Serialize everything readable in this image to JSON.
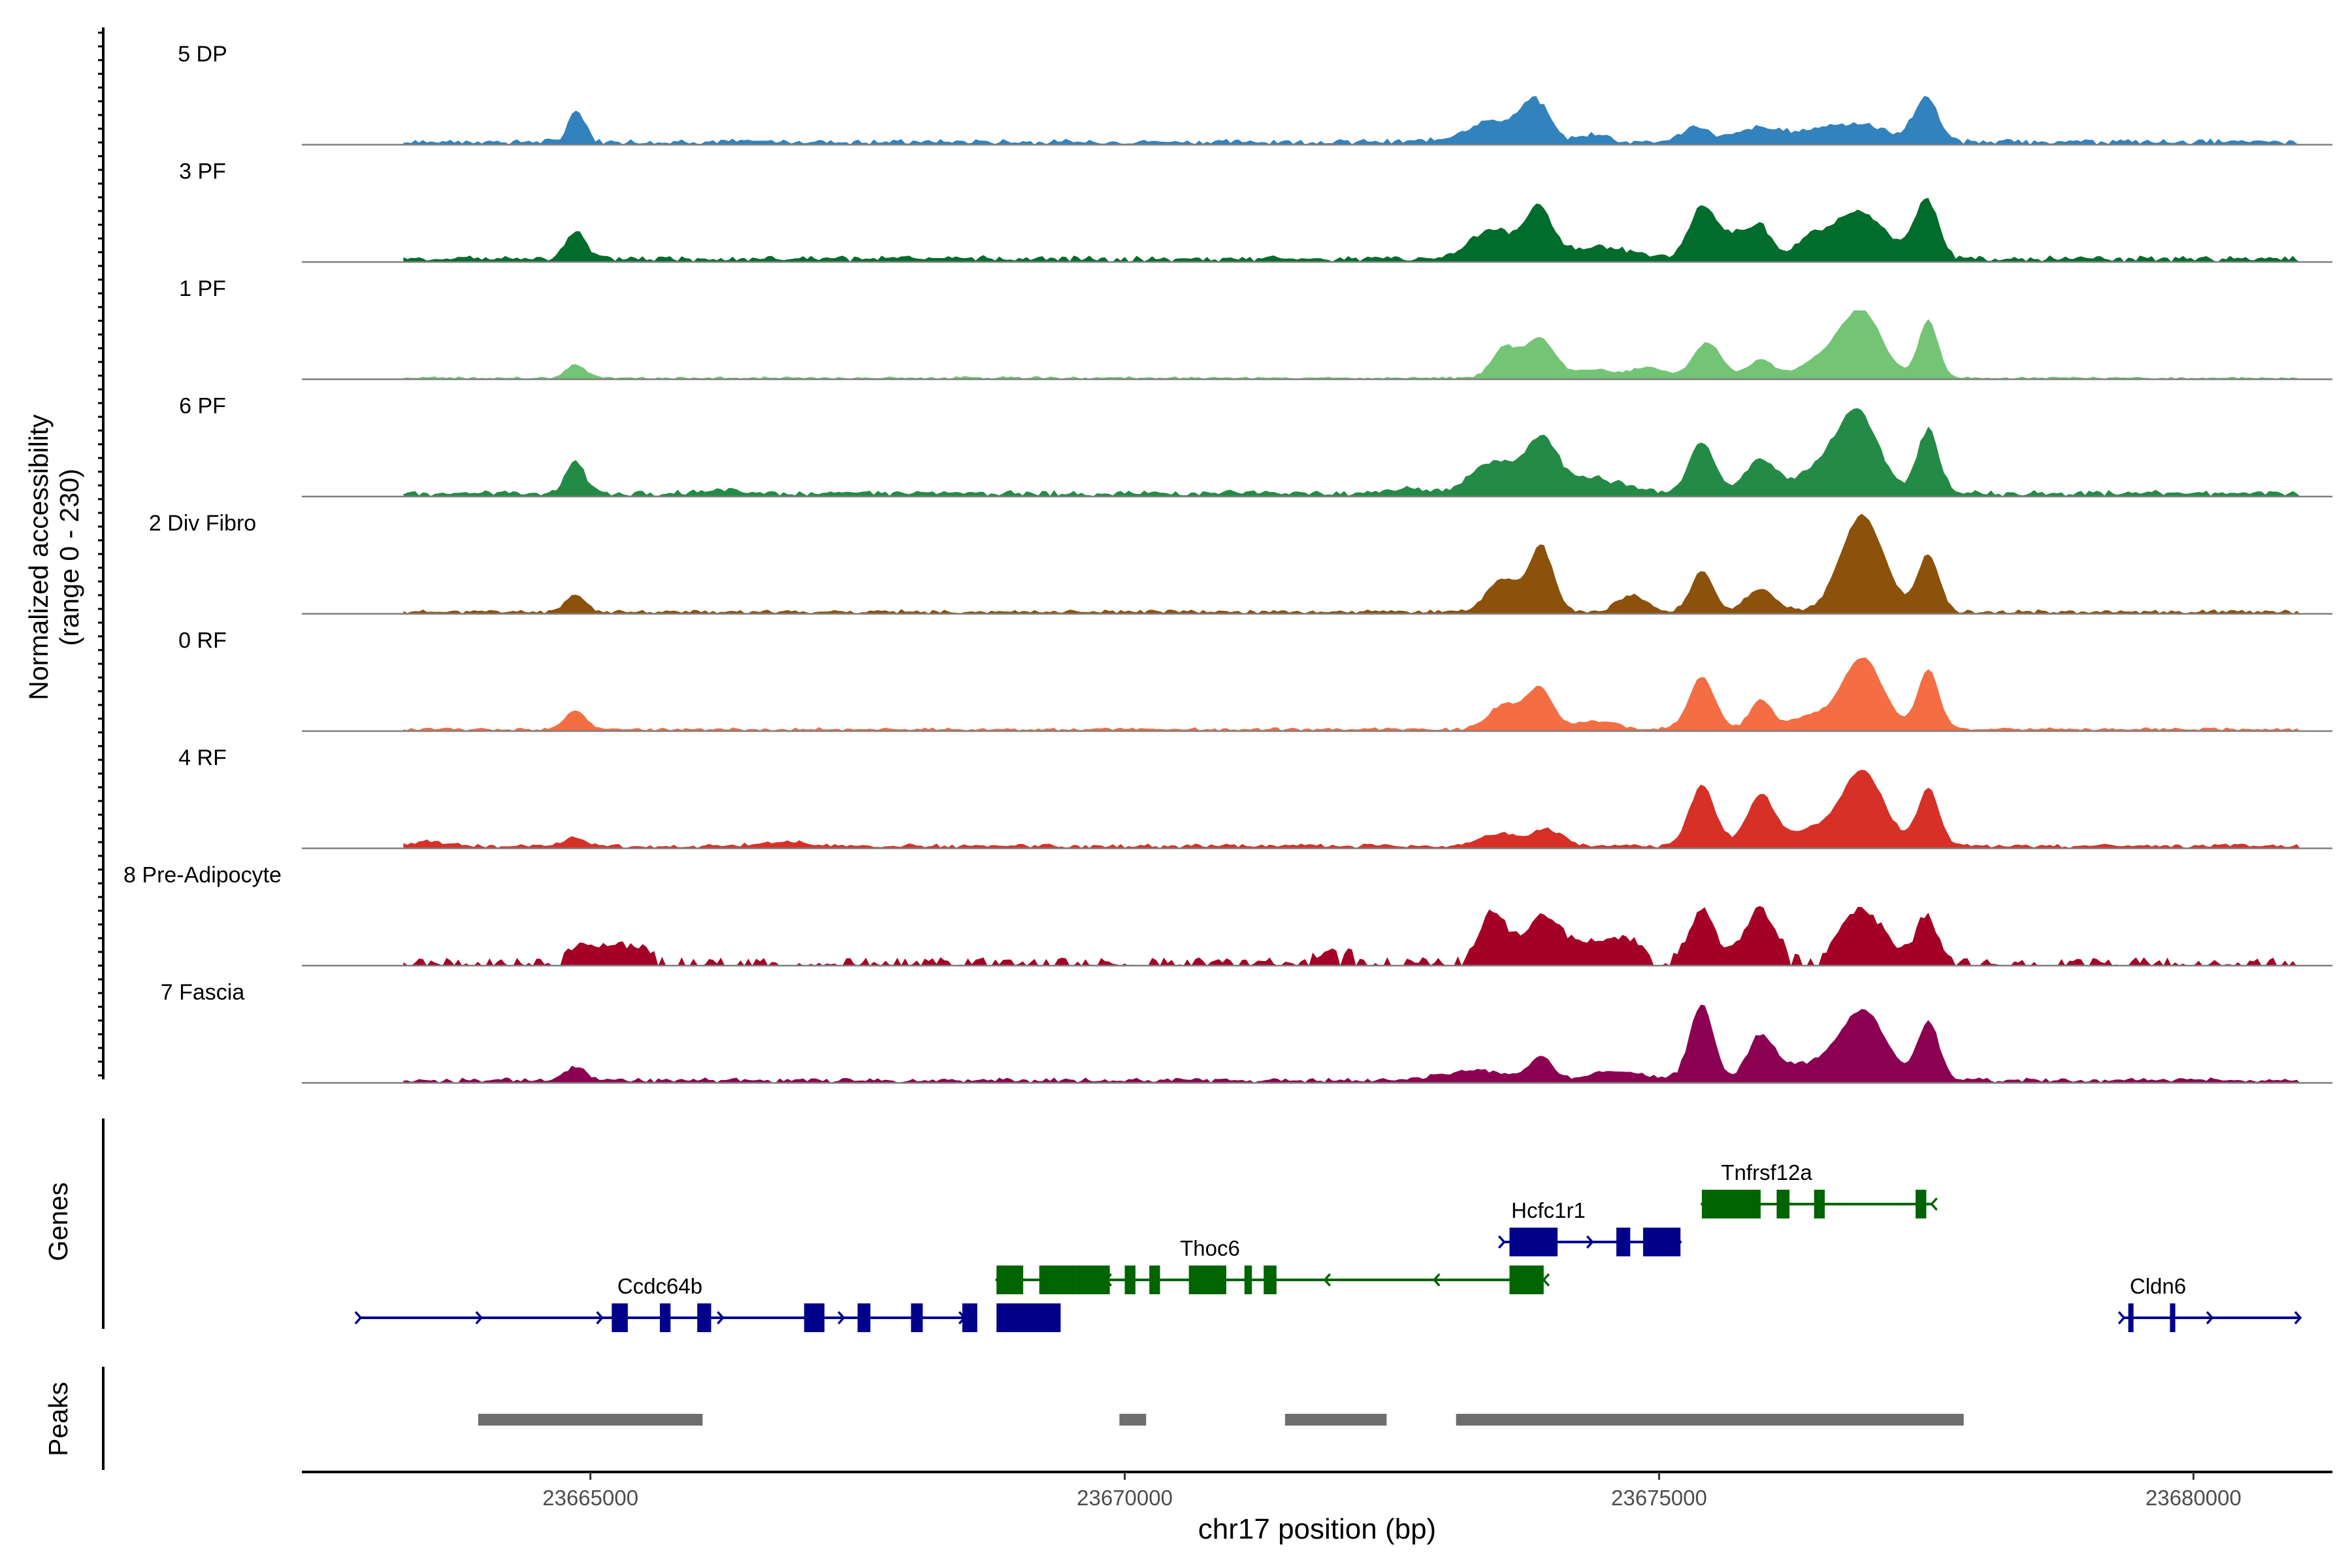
{
  "chart_data": {
    "type": "area",
    "title": "",
    "xlabel": "chr17 position (bp)",
    "ylabel_line1": "Normalized accessibility",
    "ylabel_line2": "(range 0 - 230)",
    "ylim": [
      0,
      230
    ],
    "xlim": [
      23662300,
      23681300
    ],
    "x_ticks": [
      23665000,
      23670000,
      23675000,
      23680000
    ],
    "x_tick_labels": [
      "23665000",
      "23670000",
      "23675000",
      "23680000"
    ],
    "tracks": [
      {
        "name": "5 DP",
        "color": "#3182bd",
        "baseline": 6,
        "noise": 0.025,
        "drop": 0,
        "range": [
          23663250,
          23681000
        ],
        "peaks": [
          [
            23664860,
            0.3,
            70,
            0.95
          ],
          [
            23664960,
            0.06,
            40,
            0.2
          ],
          [
            23673450,
            0.2,
            260,
            0.7
          ],
          [
            23673850,
            0.35,
            130,
            1.0
          ],
          [
            23674400,
            0.08,
            120,
            0.4
          ],
          [
            23675350,
            0.14,
            130,
            0.7
          ],
          [
            23675900,
            0.1,
            180,
            0.5
          ],
          [
            23676800,
            0.17,
            320,
            0.7
          ],
          [
            23677500,
            0.42,
            110,
            1.0
          ],
          [
            23676200,
            0.05,
            300,
            0.2
          ]
        ]
      },
      {
        "name": "3 PF",
        "color": "#006d2c",
        "baseline": 6,
        "noise": 0.03,
        "drop": 0,
        "range": [
          23663250,
          23681000
        ],
        "peaks": [
          [
            23664860,
            0.26,
            90,
            0.95
          ],
          [
            23673450,
            0.28,
            220,
            0.8
          ],
          [
            23673880,
            0.46,
            120,
            1.0
          ],
          [
            23674450,
            0.12,
            300,
            0.4
          ],
          [
            23675400,
            0.48,
            120,
            1.0
          ],
          [
            23675700,
            0.22,
            150,
            0.6
          ],
          [
            23675950,
            0.28,
            100,
            0.8
          ],
          [
            23676400,
            0.14,
            120,
            0.5
          ],
          [
            23676850,
            0.45,
            260,
            1.0
          ],
          [
            23677500,
            0.56,
            110,
            1.0
          ]
        ]
      },
      {
        "name": "1 PF",
        "color": "#74c476",
        "baseline": 2,
        "noise": 0.018,
        "drop": 0,
        "range": [
          23663250,
          23681000
        ],
        "peaks": [
          [
            23664860,
            0.13,
            90,
            0.95
          ],
          [
            23673550,
            0.28,
            120,
            0.9
          ],
          [
            23673880,
            0.38,
            140,
            1.0
          ],
          [
            23674400,
            0.08,
            200,
            0.5
          ],
          [
            23674900,
            0.1,
            150,
            0.5
          ],
          [
            23675450,
            0.34,
            130,
            1.0
          ],
          [
            23675950,
            0.17,
            120,
            0.7
          ],
          [
            23676900,
            0.6,
            190,
            1.0
          ],
          [
            23676550,
            0.18,
            220,
            0.6
          ],
          [
            23677520,
            0.56,
            90,
            1.0
          ]
        ]
      },
      {
        "name": "6 PF",
        "color": "#238b45",
        "baseline": 6,
        "noise": 0.03,
        "drop": 0,
        "range": [
          23663250,
          23681000
        ],
        "peaks": [
          [
            23664860,
            0.32,
            90,
            0.95
          ],
          [
            23673450,
            0.3,
            200,
            0.8
          ],
          [
            23673900,
            0.5,
            150,
            1.0
          ],
          [
            23674400,
            0.14,
            280,
            0.5
          ],
          [
            23675400,
            0.48,
            120,
            1.0
          ],
          [
            23675950,
            0.32,
            140,
            0.8
          ],
          [
            23676850,
            0.78,
            200,
            1.0
          ],
          [
            23676450,
            0.18,
            200,
            0.5
          ],
          [
            23677520,
            0.62,
            100,
            1.0
          ],
          [
            23666200,
            0.03,
            200,
            0.3
          ],
          [
            23672600,
            0.04,
            200,
            0.3
          ]
        ]
      },
      {
        "name": "2 Div Fibro",
        "color": "#8c510a",
        "baseline": 4,
        "noise": 0.02,
        "drop": 0,
        "range": [
          23663250,
          23681000
        ],
        "peaks": [
          [
            23664860,
            0.16,
            90,
            0.95
          ],
          [
            23673550,
            0.32,
            150,
            0.9
          ],
          [
            23673900,
            0.62,
            110,
            1.0
          ],
          [
            23674750,
            0.17,
            130,
            0.8
          ],
          [
            23675400,
            0.4,
            100,
            1.0
          ],
          [
            23675950,
            0.21,
            140,
            0.7
          ],
          [
            23676900,
            0.92,
            200,
            1.0
          ],
          [
            23677520,
            0.54,
            100,
            1.0
          ]
        ]
      },
      {
        "name": "0 RF",
        "color": "#f46d43",
        "baseline": 3,
        "noise": 0.02,
        "drop": 0,
        "range": [
          23663250,
          23681000
        ],
        "peaks": [
          [
            23664860,
            0.18,
            100,
            0.95
          ],
          [
            23673550,
            0.24,
            140,
            0.9
          ],
          [
            23673880,
            0.4,
            120,
            1.0
          ],
          [
            23674400,
            0.08,
            200,
            0.5
          ],
          [
            23675400,
            0.5,
            120,
            1.0
          ],
          [
            23675950,
            0.28,
            100,
            0.8
          ],
          [
            23676900,
            0.68,
            190,
            1.0
          ],
          [
            23677520,
            0.56,
            100,
            1.0
          ],
          [
            23676400,
            0.12,
            180,
            0.4
          ]
        ]
      },
      {
        "name": "4 RF",
        "color": "#d73027",
        "baseline": 4,
        "noise": 0.025,
        "drop": 0,
        "range": [
          23663250,
          23681000
        ],
        "peaks": [
          [
            23664860,
            0.08,
            100,
            0.95
          ],
          [
            23673500,
            0.12,
            160,
            0.7
          ],
          [
            23673950,
            0.16,
            150,
            0.7
          ],
          [
            23675400,
            0.58,
            120,
            1.0
          ],
          [
            23675950,
            0.48,
            130,
            1.0
          ],
          [
            23676900,
            0.72,
            200,
            1.0
          ],
          [
            23677520,
            0.55,
            100,
            1.0
          ],
          [
            23676400,
            0.14,
            200,
            0.5
          ],
          [
            23663500,
            0.05,
            150,
            0.4
          ],
          [
            23666800,
            0.04,
            200,
            0.3
          ]
        ]
      },
      {
        "name": "8 Pre-Adipocyte",
        "color": "#a50026",
        "baseline": 0,
        "noise": 0.08,
        "drop": 0.35,
        "range": [
          23663250,
          23681000
        ],
        "peaks": [
          [
            23673450,
            0.48,
            130,
            0.9
          ],
          [
            23673900,
            0.44,
            150,
            0.9
          ],
          [
            23674300,
            0.18,
            200,
            0.6
          ],
          [
            23675400,
            0.5,
            120,
            1.0
          ],
          [
            23675950,
            0.5,
            150,
            1.0
          ],
          [
            23676900,
            0.5,
            200,
            1.0
          ],
          [
            23677500,
            0.44,
            100,
            1.0
          ],
          [
            23664950,
            0.18,
            160,
            0.7
          ],
          [
            23665400,
            0.16,
            180,
            0.7
          ],
          [
            23672000,
            0.1,
            200,
            0.5
          ],
          [
            23674700,
            0.22,
            150,
            0.7
          ]
        ]
      },
      {
        "name": "7 Fascia",
        "color": "#8c0051",
        "baseline": 5,
        "noise": 0.025,
        "drop": 0,
        "range": [
          23663250,
          23681000
        ],
        "peaks": [
          [
            23664860,
            0.12,
            100,
            0.95
          ],
          [
            23673900,
            0.22,
            100,
            0.8
          ],
          [
            23673300,
            0.1,
            300,
            0.5
          ],
          [
            23675400,
            0.72,
            110,
            1.0
          ],
          [
            23675950,
            0.4,
            120,
            1.0
          ],
          [
            23676900,
            0.66,
            220,
            1.0
          ],
          [
            23677520,
            0.56,
            100,
            1.0
          ],
          [
            23676300,
            0.14,
            250,
            0.5
          ],
          [
            23674600,
            0.08,
            300,
            0.4
          ]
        ]
      }
    ],
    "genes": [
      {
        "name": "Ccdc64b",
        "color": "#00008b",
        "strand": "+",
        "row": 0,
        "start": 23662850,
        "end": 23668500,
        "exons": [
          [
            23665200,
            23665350
          ],
          [
            23665650,
            23665750
          ],
          [
            23666000,
            23666130
          ],
          [
            23667000,
            23667190
          ],
          [
            23667500,
            23667620
          ],
          [
            23668000,
            23668110
          ],
          [
            23668480,
            23668620
          ],
          [
            23668800,
            23669400
          ]
        ]
      },
      {
        "name": "Thoc6",
        "color": "#006400",
        "strand": "-",
        "row": 1,
        "start": 23668800,
        "end": 23673920,
        "exons": [
          [
            23668800,
            23669050
          ],
          [
            23669200,
            23669550
          ],
          [
            23669550,
            23669860
          ],
          [
            23670000,
            23670100
          ],
          [
            23670230,
            23670330
          ],
          [
            23670600,
            23670950
          ],
          [
            23671120,
            23671190
          ],
          [
            23671300,
            23671420
          ],
          [
            23673600,
            23673920
          ]
        ]
      },
      {
        "name": "Hcfc1r1",
        "color": "#00008b",
        "strand": "+",
        "row": 2,
        "start": 23673550,
        "end": 23675200,
        "exons": [
          [
            23673600,
            23674050
          ],
          [
            23674600,
            23674730
          ],
          [
            23674850,
            23675200
          ]
        ]
      },
      {
        "name": "Tnfrsf12a",
        "color": "#006400",
        "strand": "-",
        "row": 3,
        "start": 23675400,
        "end": 23677550,
        "exons": [
          [
            23675400,
            23675950
          ],
          [
            23676100,
            23676220
          ],
          [
            23676450,
            23676550
          ],
          [
            23677400,
            23677500
          ]
        ]
      },
      {
        "name": "Cldn6",
        "color": "#00008b",
        "strand": "+",
        "row": 0,
        "start": 23679350,
        "end": 23681000,
        "exons": [
          [
            23679390,
            23679430
          ],
          [
            23679780,
            23679830
          ]
        ]
      }
    ],
    "peaks": [
      [
        23663950,
        23666050
      ],
      [
        23669950,
        23670200
      ],
      [
        23671500,
        23672450
      ],
      [
        23673100,
        23677850
      ]
    ],
    "panel_labels": {
      "genes": "Genes",
      "peaks": "Peaks"
    }
  }
}
